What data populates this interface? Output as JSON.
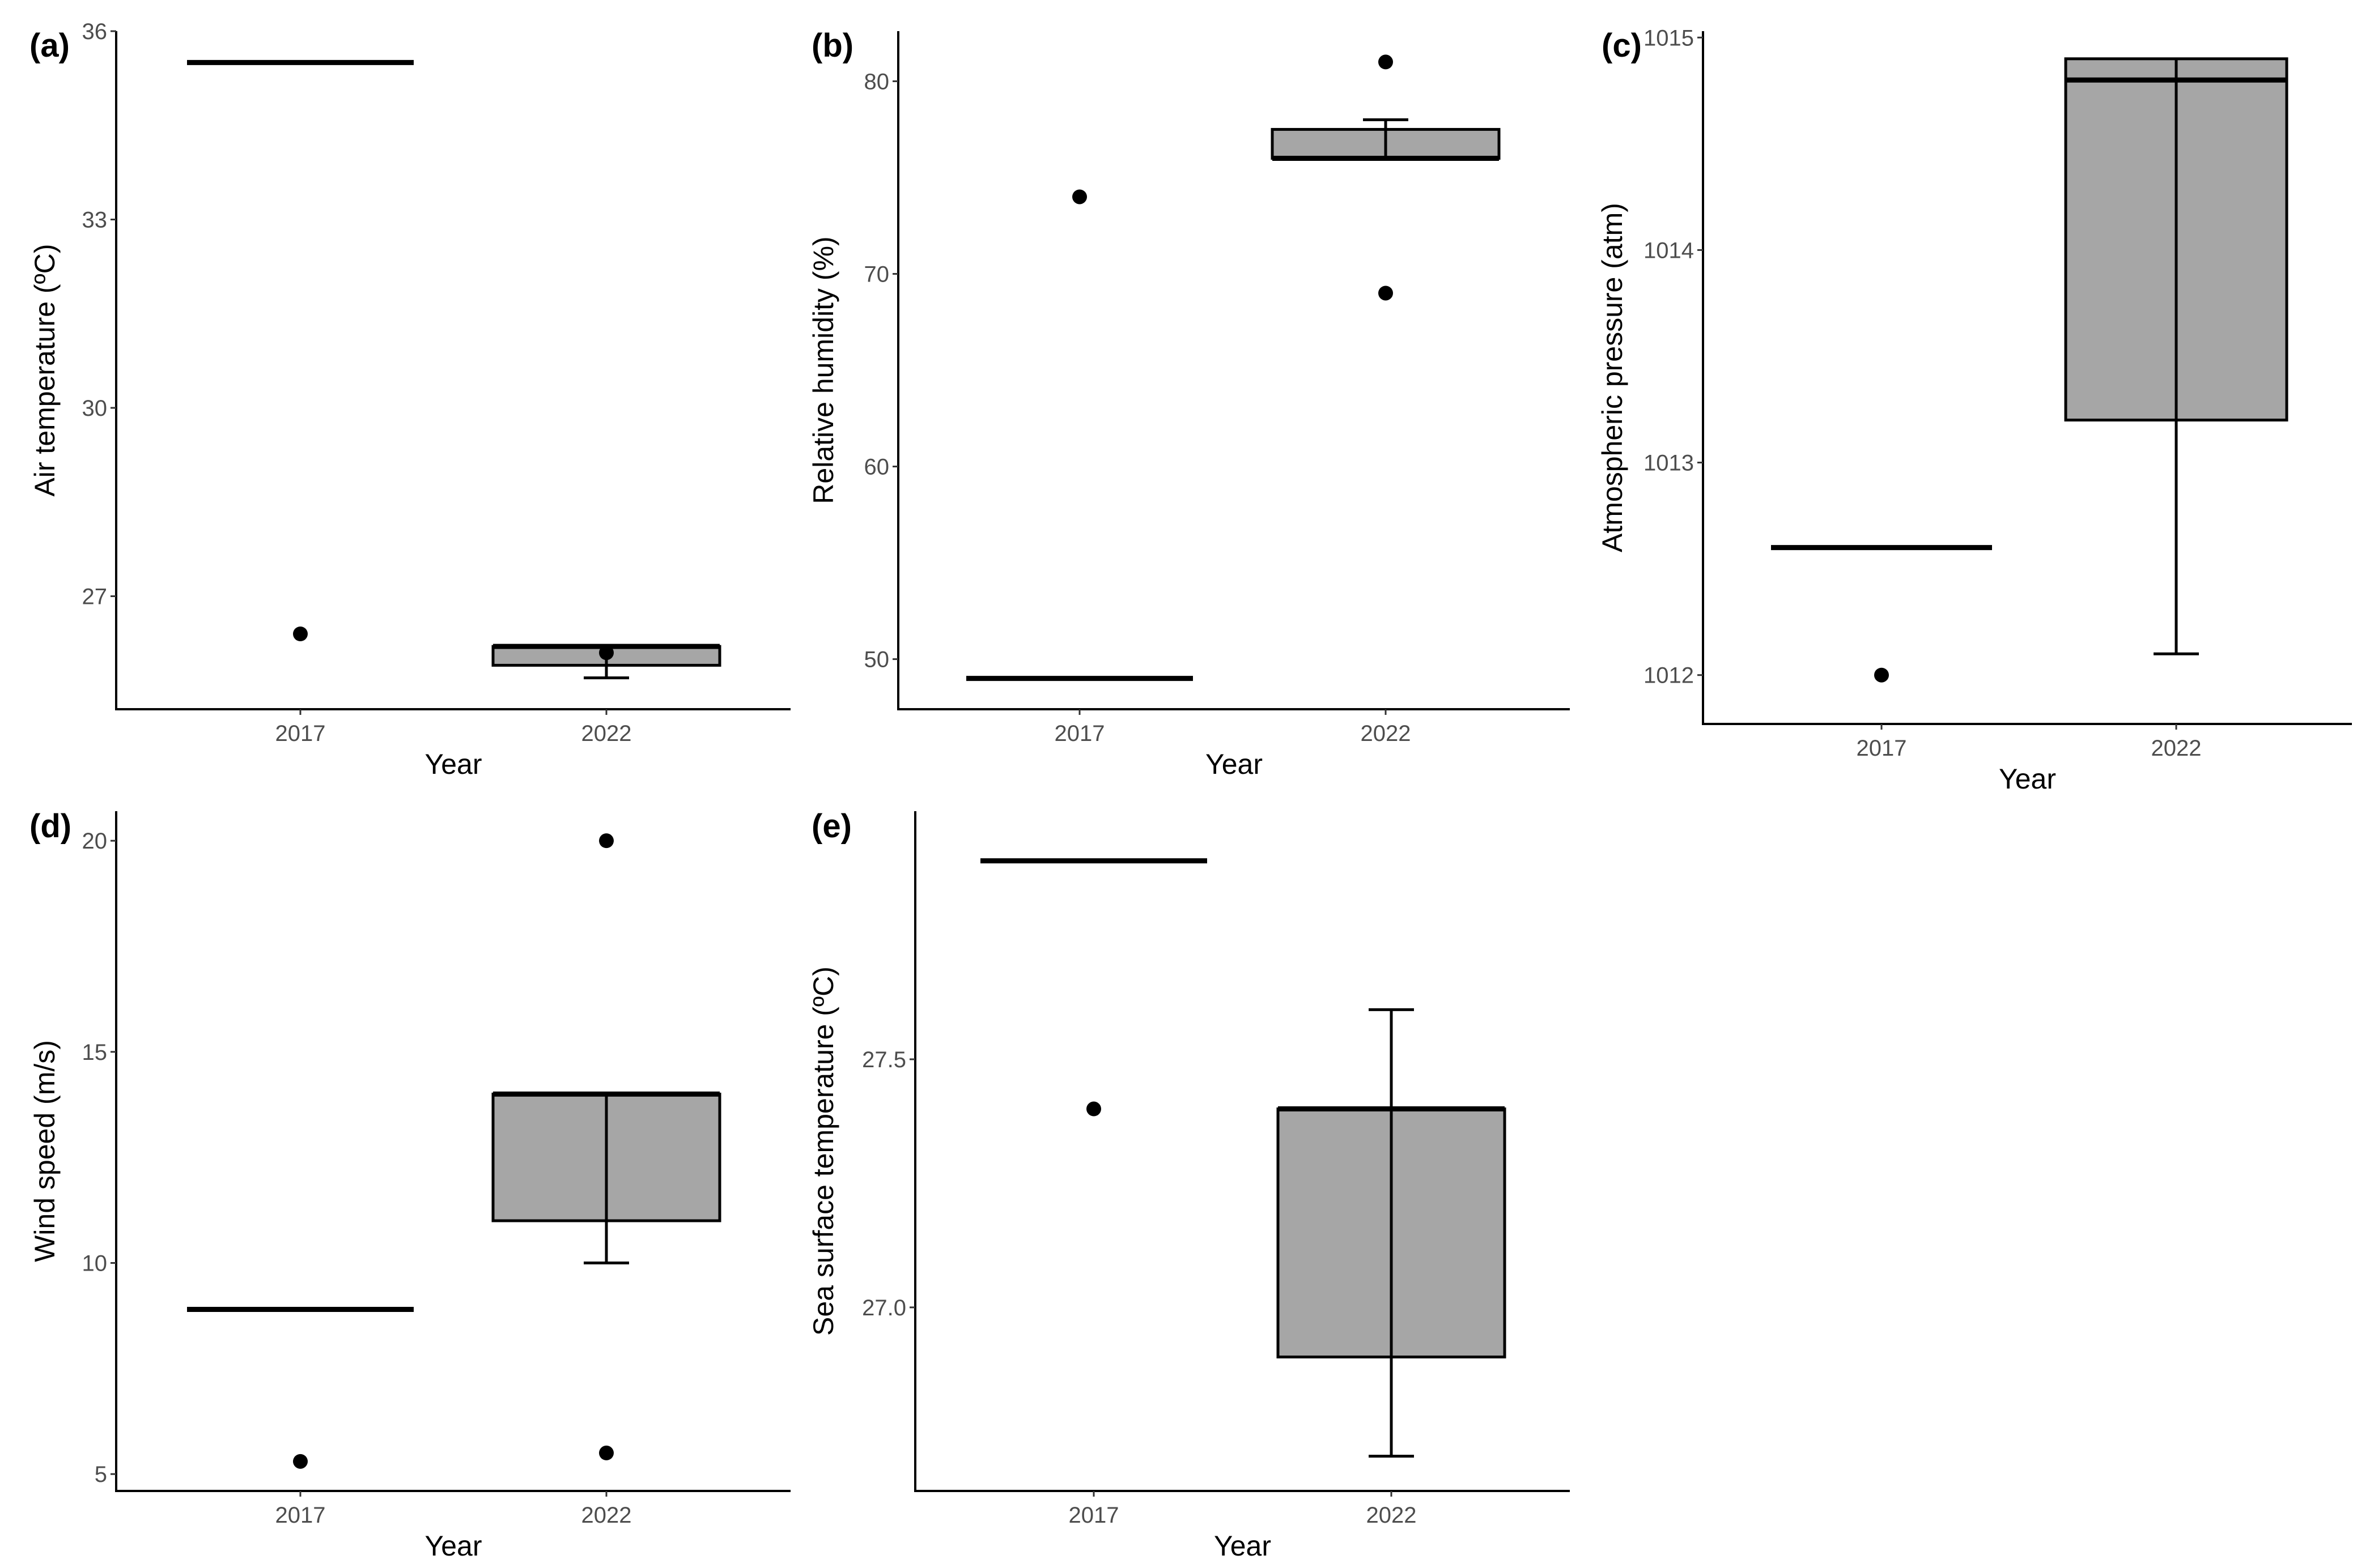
{
  "chart_data": [
    {
      "type": "box",
      "label": "(a)",
      "title": "",
      "xlabel": "Year",
      "ylabel": "Air temperature (ºC)",
      "categories": [
        "2017",
        "2022"
      ],
      "ylim": [
        25.2,
        36
      ],
      "yticks": [
        27,
        30,
        33,
        36
      ],
      "boxes": [
        {
          "category": "2017",
          "q1": 35.5,
          "median": 35.5,
          "q3": 35.5,
          "whisker_low": 35.5,
          "whisker_high": 35.5,
          "outliers": [
            26.4
          ]
        },
        {
          "category": "2022",
          "q1": 25.9,
          "median": 26.2,
          "q3": 26.2,
          "whisker_low": 25.7,
          "whisker_high": 26.2,
          "outliers": [
            26.1
          ]
        }
      ]
    },
    {
      "type": "box",
      "label": "(b)",
      "title": "",
      "xlabel": "Year",
      "ylabel": "Relative humidity (%)",
      "categories": [
        "2017",
        "2022"
      ],
      "ylim": [
        47.4,
        82.6
      ],
      "yticks": [
        50,
        60,
        70,
        80
      ],
      "boxes": [
        {
          "category": "2017",
          "q1": 49,
          "median": 49,
          "q3": 49,
          "whisker_low": 49,
          "whisker_high": 49,
          "outliers": [
            74
          ]
        },
        {
          "category": "2022",
          "q1": 76,
          "median": 76,
          "q3": 77.5,
          "whisker_low": 76,
          "whisker_high": 78,
          "outliers": [
            81,
            69
          ]
        }
      ]
    },
    {
      "type": "box",
      "label": "(c)",
      "title": "",
      "xlabel": "Year",
      "ylabel": "Atmospheric pressure (atm)",
      "categories": [
        "2017",
        "2022"
      ],
      "ylim": [
        1011.77,
        1015.03
      ],
      "yticks": [
        1012,
        1013,
        1014,
        1015
      ],
      "boxes": [
        {
          "category": "2017",
          "q1": 1012.6,
          "median": 1012.6,
          "q3": 1012.6,
          "whisker_low": 1012.6,
          "whisker_high": 1012.6,
          "outliers": [
            1012
          ]
        },
        {
          "category": "2022",
          "q1": 1013.2,
          "median": 1014.8,
          "q3": 1014.9,
          "whisker_low": 1012.1,
          "whisker_high": 1014.9,
          "outliers": []
        }
      ]
    },
    {
      "type": "box",
      "label": "(d)",
      "title": "",
      "xlabel": "Year",
      "ylabel": "Wind speed (m/s)",
      "categories": [
        "2017",
        "2022"
      ],
      "ylim": [
        4.6,
        20.7
      ],
      "yticks": [
        5,
        10,
        15,
        20
      ],
      "boxes": [
        {
          "category": "2017",
          "q1": 8.9,
          "median": 8.9,
          "q3": 8.9,
          "whisker_low": 8.9,
          "whisker_high": 8.9,
          "outliers": [
            5.3
          ]
        },
        {
          "category": "2022",
          "q1": 11,
          "median": 14,
          "q3": 14,
          "whisker_low": 10,
          "whisker_high": 14,
          "outliers": [
            20,
            5.5
          ]
        }
      ]
    },
    {
      "type": "box",
      "label": "(e)",
      "title": "",
      "xlabel": "Year",
      "ylabel": "Sea surface temperature (ºC)",
      "categories": [
        "2017",
        "2022"
      ],
      "ylim": [
        26.63,
        28.0
      ],
      "yticks": [
        27.0,
        27.5
      ],
      "ytick_labels": [
        "27.0",
        "27.5"
      ],
      "boxes": [
        {
          "category": "2017",
          "q1": 27.9,
          "median": 27.9,
          "q3": 27.9,
          "whisker_low": 27.9,
          "whisker_high": 27.9,
          "outliers": [
            27.4
          ]
        },
        {
          "category": "2022",
          "q1": 26.9,
          "median": 27.4,
          "q3": 27.4,
          "whisker_low": 26.7,
          "whisker_high": 27.6,
          "outliers": []
        }
      ]
    }
  ]
}
